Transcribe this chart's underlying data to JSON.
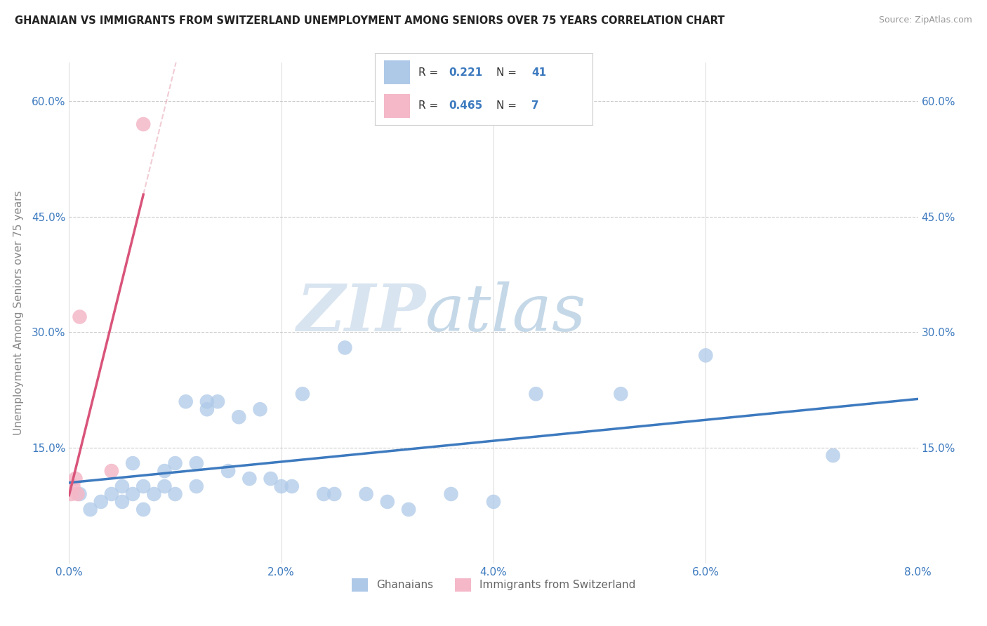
{
  "title": "GHANAIAN VS IMMIGRANTS FROM SWITZERLAND UNEMPLOYMENT AMONG SENIORS OVER 75 YEARS CORRELATION CHART",
  "source": "Source: ZipAtlas.com",
  "ylabel": "Unemployment Among Seniors over 75 years",
  "xlim": [
    0.0,
    0.08
  ],
  "ylim": [
    0.0,
    0.65
  ],
  "x_ticks": [
    0.0,
    0.02,
    0.04,
    0.06,
    0.08
  ],
  "x_tick_labels": [
    "0.0%",
    "2.0%",
    "4.0%",
    "6.0%",
    "8.0%"
  ],
  "y_ticks": [
    0.15,
    0.3,
    0.45,
    0.6
  ],
  "y_tick_labels": [
    "15.0%",
    "30.0%",
    "45.0%",
    "60.0%"
  ],
  "legend1_R": "0.221",
  "legend1_N": "41",
  "legend2_R": "0.465",
  "legend2_N": "7",
  "blue_color": "#aec9e8",
  "pink_color": "#f4b8c8",
  "blue_line_color": "#3d7abf",
  "pink_line_color": "#d9547a",
  "pink_dash_color": "#e8aab8",
  "watermark_zip": "ZIP",
  "watermark_atlas": "atlas",
  "ghanaian_x": [
    0.001,
    0.002,
    0.003,
    0.004,
    0.005,
    0.005,
    0.006,
    0.006,
    0.007,
    0.007,
    0.008,
    0.009,
    0.009,
    0.01,
    0.01,
    0.011,
    0.012,
    0.012,
    0.013,
    0.013,
    0.014,
    0.015,
    0.016,
    0.017,
    0.018,
    0.019,
    0.02,
    0.021,
    0.022,
    0.024,
    0.025,
    0.026,
    0.028,
    0.03,
    0.032,
    0.036,
    0.04,
    0.044,
    0.052,
    0.06,
    0.072
  ],
  "ghanaian_y": [
    0.09,
    0.07,
    0.08,
    0.09,
    0.08,
    0.1,
    0.09,
    0.13,
    0.07,
    0.1,
    0.09,
    0.1,
    0.12,
    0.09,
    0.13,
    0.21,
    0.1,
    0.13,
    0.2,
    0.21,
    0.21,
    0.12,
    0.19,
    0.11,
    0.2,
    0.11,
    0.1,
    0.1,
    0.22,
    0.09,
    0.09,
    0.28,
    0.09,
    0.08,
    0.07,
    0.09,
    0.08,
    0.22,
    0.22,
    0.27,
    0.14
  ],
  "swiss_x": [
    0.0002,
    0.0004,
    0.0006,
    0.0008,
    0.001,
    0.004,
    0.007
  ],
  "swiss_y": [
    0.09,
    0.1,
    0.11,
    0.09,
    0.32,
    0.12,
    0.57
  ],
  "pink_line_x": [
    0.0,
    0.009
  ],
  "blue_line_x_start": 0.0,
  "blue_line_x_end": 0.08
}
